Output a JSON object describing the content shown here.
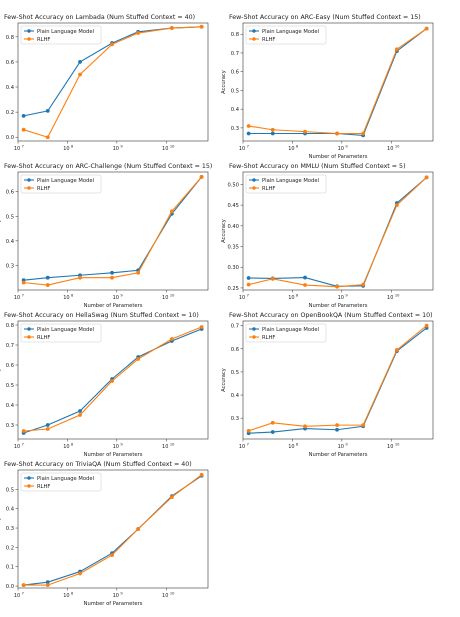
{
  "legend_labels": [
    "Plain Language Model",
    "RLHF"
  ],
  "colors": {
    "plain": "#1f77b4",
    "rlhf": "#ff7f0e"
  },
  "chart_data": [
    {
      "type": "line",
      "title": "Few-Shot Accuracy on Lambada (Num Stuffed Context = 40)",
      "xlabel": "",
      "ylabel": "",
      "xscale": "log",
      "xlim": [
        10000000.0,
        70000000000.0
      ],
      "xticks": [
        {
          "v": 10000000.0,
          "b": "10",
          "e": "7"
        },
        {
          "v": 100000000.0,
          "b": "10",
          "e": "8"
        },
        {
          "v": 1000000000.0,
          "b": "10",
          "e": "9"
        },
        {
          "v": 10000000000.0,
          "b": "10",
          "e": "10"
        }
      ],
      "ylim": [
        -0.03,
        0.91
      ],
      "yticks": [
        "0.0",
        "0.2",
        "0.4",
        "0.6",
        "0.8"
      ],
      "legend": "top-left",
      "x": [
        13000000.0,
        40000000.0,
        180000000.0,
        800000000.0,
        2700000000.0,
        13000000000.0,
        52000000000.0
      ],
      "series": [
        {
          "name": "Plain Language Model",
          "values": [
            0.17,
            0.21,
            0.6,
            0.75,
            0.84,
            0.87,
            0.88
          ]
        },
        {
          "name": "RLHF",
          "values": [
            0.06,
            0.0,
            0.5,
            0.74,
            0.83,
            0.87,
            0.88
          ]
        }
      ]
    },
    {
      "type": "line",
      "title": "Few-Shot Accuracy on ARC-Easy (Num Stuffed Context = 15)",
      "xlabel": "Number of Parameters",
      "ylabel": "Accuracy",
      "xscale": "log",
      "xlim": [
        10000000.0,
        70000000000.0
      ],
      "xticks": [
        {
          "v": 10000000.0,
          "b": "10",
          "e": "7"
        },
        {
          "v": 100000000.0,
          "b": "10",
          "e": "8"
        },
        {
          "v": 1000000000.0,
          "b": "10",
          "e": "9"
        },
        {
          "v": 10000000000.0,
          "b": "10",
          "e": "10"
        }
      ],
      "ylim": [
        0.23,
        0.86
      ],
      "yticks": [
        "0.3",
        "0.4",
        "0.5",
        "0.6",
        "0.7",
        "0.8"
      ],
      "legend": "top-left",
      "x": [
        13000000.0,
        40000000.0,
        180000000.0,
        800000000.0,
        2700000000.0,
        13000000000.0,
        52000000000.0
      ],
      "series": [
        {
          "name": "Plain Language Model",
          "values": [
            0.27,
            0.27,
            0.27,
            0.27,
            0.26,
            0.71,
            0.83
          ]
        },
        {
          "name": "RLHF",
          "values": [
            0.31,
            0.29,
            0.28,
            0.27,
            0.27,
            0.72,
            0.83
          ]
        }
      ]
    },
    {
      "type": "line",
      "title": "Few-Shot Accuracy on ARC-Challenge (Num Stuffed Context = 15)",
      "xlabel": "Number of Parameters",
      "ylabel": "Accuracy",
      "xscale": "log",
      "xlim": [
        10000000.0,
        70000000000.0
      ],
      "xticks": [
        {
          "v": 10000000.0,
          "b": "10",
          "e": "7"
        },
        {
          "v": 100000000.0,
          "b": "10",
          "e": "8"
        },
        {
          "v": 1000000000.0,
          "b": "10",
          "e": "9"
        },
        {
          "v": 10000000000.0,
          "b": "10",
          "e": "10"
        }
      ],
      "ylim": [
        0.2,
        0.68
      ],
      "yticks": [
        "0.3",
        "0.4",
        "0.5",
        "0.6"
      ],
      "legend": "top-left",
      "x": [
        13000000.0,
        40000000.0,
        180000000.0,
        800000000.0,
        2700000000.0,
        13000000000.0,
        52000000000.0
      ],
      "series": [
        {
          "name": "Plain Language Model",
          "values": [
            0.24,
            0.25,
            0.26,
            0.27,
            0.28,
            0.51,
            0.66
          ]
        },
        {
          "name": "RLHF",
          "values": [
            0.23,
            0.22,
            0.25,
            0.25,
            0.27,
            0.52,
            0.66
          ]
        }
      ]
    },
    {
      "type": "line",
      "title": "Few-Shot Accuracy on MMLU (Num Stuffed Context = 5)",
      "xlabel": "Number of Parameters",
      "ylabel": "Accuracy",
      "xscale": "log",
      "xlim": [
        10000000.0,
        70000000000.0
      ],
      "xticks": [
        {
          "v": 10000000.0,
          "b": "10",
          "e": "7"
        },
        {
          "v": 100000000.0,
          "b": "10",
          "e": "8"
        },
        {
          "v": 1000000000.0,
          "b": "10",
          "e": "9"
        },
        {
          "v": 10000000000.0,
          "b": "10",
          "e": "10"
        }
      ],
      "ylim": [
        0.245,
        0.53
      ],
      "yticks": [
        "0.25",
        "0.30",
        "0.35",
        "0.40",
        "0.45",
        "0.50"
      ],
      "legend": "top-left",
      "x": [
        13000000.0,
        40000000.0,
        180000000.0,
        800000000.0,
        2700000000.0,
        13000000000.0,
        52000000000.0
      ],
      "series": [
        {
          "name": "Plain Language Model",
          "values": [
            0.274,
            0.273,
            0.275,
            0.254,
            0.255,
            0.455,
            0.517
          ]
        },
        {
          "name": "RLHF",
          "values": [
            0.258,
            0.272,
            0.257,
            0.253,
            0.258,
            0.45,
            0.517
          ]
        }
      ]
    },
    {
      "type": "line",
      "title": "Few-Shot Accuracy on HellaSwag (Num Stuffed Context = 10)",
      "xlabel": "Number of Parameters",
      "ylabel": "Accuracy",
      "xscale": "log",
      "xlim": [
        10000000.0,
        70000000000.0
      ],
      "xticks": [
        {
          "v": 10000000.0,
          "b": "10",
          "e": "7"
        },
        {
          "v": 100000000.0,
          "b": "10",
          "e": "8"
        },
        {
          "v": 1000000000.0,
          "b": "10",
          "e": "9"
        },
        {
          "v": 10000000000.0,
          "b": "10",
          "e": "10"
        }
      ],
      "ylim": [
        0.23,
        0.82
      ],
      "yticks": [
        "0.3",
        "0.4",
        "0.5",
        "0.6",
        "0.7",
        "0.8"
      ],
      "legend": "top-left",
      "x": [
        13000000.0,
        40000000.0,
        180000000.0,
        800000000.0,
        2700000000.0,
        13000000000.0,
        52000000000.0
      ],
      "series": [
        {
          "name": "Plain Language Model",
          "values": [
            0.26,
            0.3,
            0.37,
            0.53,
            0.64,
            0.72,
            0.78
          ]
        },
        {
          "name": "RLHF",
          "values": [
            0.27,
            0.28,
            0.35,
            0.52,
            0.63,
            0.73,
            0.79
          ]
        }
      ]
    },
    {
      "type": "line",
      "title": "Few-Shot Accuracy on OpenBookQA (Num Stuffed Context = 10)",
      "xlabel": "Number of Parameters",
      "ylabel": "Accuracy",
      "xscale": "log",
      "xlim": [
        10000000.0,
        70000000000.0
      ],
      "xticks": [
        {
          "v": 10000000.0,
          "b": "10",
          "e": "7"
        },
        {
          "v": 100000000.0,
          "b": "10",
          "e": "8"
        },
        {
          "v": 1000000000.0,
          "b": "10",
          "e": "9"
        },
        {
          "v": 10000000000.0,
          "b": "10",
          "e": "10"
        }
      ],
      "ylim": [
        0.21,
        0.72
      ],
      "yticks": [
        "0.3",
        "0.4",
        "0.5",
        "0.6",
        "0.7"
      ],
      "legend": "top-left",
      "x": [
        13000000.0,
        40000000.0,
        180000000.0,
        800000000.0,
        2700000000.0,
        13000000000.0,
        52000000000.0
      ],
      "series": [
        {
          "name": "Plain Language Model",
          "values": [
            0.235,
            0.24,
            0.255,
            0.25,
            0.265,
            0.59,
            0.69
          ]
        },
        {
          "name": "RLHF",
          "values": [
            0.245,
            0.28,
            0.265,
            0.27,
            0.27,
            0.595,
            0.7
          ]
        }
      ]
    },
    {
      "type": "line",
      "title": "Few-Shot Accuracy on TriviaQA (Num Stuffed Context = 40)",
      "xlabel": "Number of Parameters",
      "ylabel": "Accuracy",
      "xscale": "log",
      "xlim": [
        10000000.0,
        70000000000.0
      ],
      "xticks": [
        {
          "v": 10000000.0,
          "b": "10",
          "e": "7"
        },
        {
          "v": 100000000.0,
          "b": "10",
          "e": "8"
        },
        {
          "v": 1000000000.0,
          "b": "10",
          "e": "9"
        },
        {
          "v": 10000000000.0,
          "b": "10",
          "e": "10"
        }
      ],
      "ylim": [
        -0.01,
        0.6
      ],
      "yticks": [
        "0.0",
        "0.1",
        "0.2",
        "0.3",
        "0.4",
        "0.5"
      ],
      "legend": "top-left",
      "x": [
        13000000.0,
        40000000.0,
        180000000.0,
        800000000.0,
        2700000000.0,
        13000000000.0,
        52000000000.0
      ],
      "series": [
        {
          "name": "Plain Language Model",
          "values": [
            0.005,
            0.02,
            0.075,
            0.17,
            0.295,
            0.465,
            0.57
          ]
        },
        {
          "name": "RLHF",
          "values": [
            0.005,
            0.005,
            0.065,
            0.16,
            0.295,
            0.46,
            0.575
          ]
        }
      ]
    }
  ]
}
